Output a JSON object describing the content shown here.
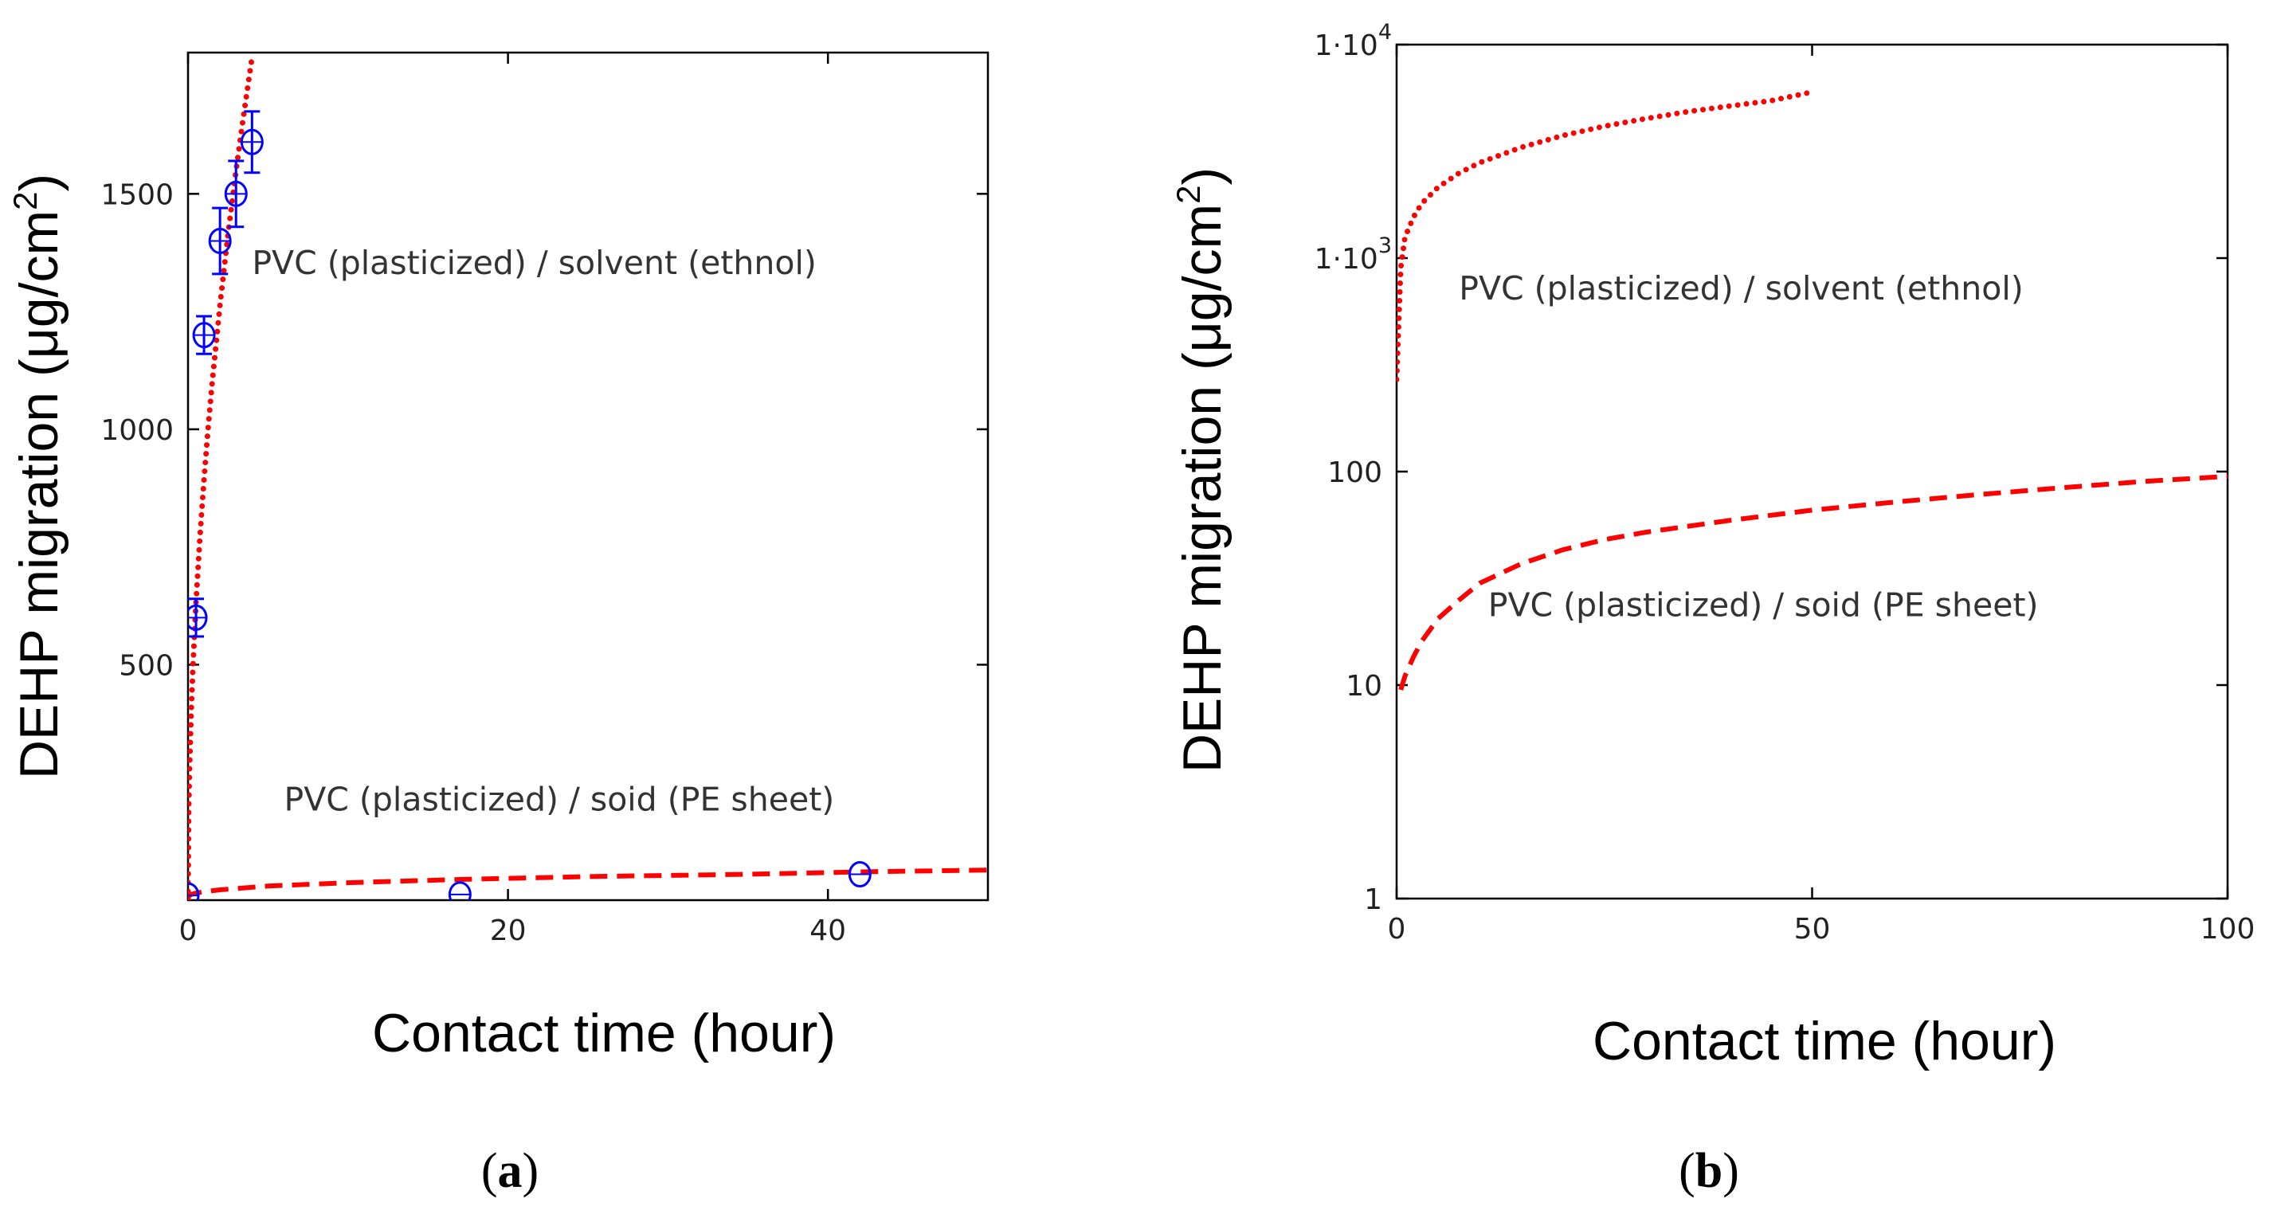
{
  "chart_data": [
    {
      "type": "line",
      "panel_label": "a",
      "panel_label_display": {
        "open": "(",
        "letter": "a",
        "close": ")"
      },
      "xlabel": "Contact time (hour)",
      "ylabel": "DEHP migration (μg/cm²)",
      "ylabel_parts": {
        "prefix": "DEHP migration (μg/cm",
        "sup": "2",
        "suffix": ")"
      },
      "xlim": [
        0,
        50
      ],
      "ylim": [
        0,
        1800
      ],
      "yscale": "linear",
      "x_ticks": [
        0,
        20,
        40
      ],
      "x_tick_labels": [
        "0",
        "20",
        "40"
      ],
      "y_ticks": [
        500,
        1000,
        1500
      ],
      "y_tick_labels": [
        "500",
        "1000",
        "1500"
      ],
      "grid": false,
      "annotations": [
        {
          "text": "PVC (plasticized) / solvent (ethnol)",
          "x": 4,
          "y": 1330
        },
        {
          "text": "PVC (plasticized) / soid (PE sheet)",
          "x": 6,
          "y": 190
        }
      ],
      "series": [
        {
          "name": "PVC (plasticized) / solvent (ethnol) - model",
          "style": "dotted",
          "color": "#ff0000",
          "x": [
            0,
            0.05,
            0.1,
            0.2,
            0.3,
            0.5,
            0.75,
            1,
            1.25,
            1.5,
            2,
            2.5,
            3,
            3.5,
            4
          ],
          "y": [
            0,
            200,
            283,
            400,
            490,
            632,
            775,
            894,
            1000,
            1095,
            1265,
            1414,
            1549,
            1673,
            1789
          ]
        },
        {
          "name": "PVC (plasticized) / soid (PE sheet) - model",
          "style": "dashed",
          "color": "#ff0000",
          "x": [
            0,
            0.02,
            0.05,
            0.1,
            0.2,
            0.5,
            1,
            2,
            5,
            10,
            17,
            25,
            35,
            42,
            50
          ],
          "y": [
            0,
            5,
            8,
            10,
            12,
            15,
            18,
            22,
            30,
            37,
            44,
            50,
            55,
            60,
            64
          ]
        },
        {
          "name": "PVC (plasticized) / solvent (ethnol) - data",
          "style": "markers",
          "color": "#0000ff",
          "marker": "circle",
          "x": [
            0.5,
            1,
            2,
            3,
            4
          ],
          "y": [
            600,
            1200,
            1400,
            1500,
            1610
          ],
          "error": [
            40,
            40,
            70,
            70,
            65
          ]
        },
        {
          "name": "PVC (plasticized) / soid (PE sheet) - data",
          "style": "markers",
          "color": "#0000ff",
          "marker": "circle",
          "x": [
            0,
            17,
            42
          ],
          "y": [
            10,
            12,
            55
          ],
          "error": [
            0,
            0,
            0
          ]
        }
      ]
    },
    {
      "type": "line",
      "panel_label": "b",
      "panel_label_display": {
        "open": "(",
        "letter": "b",
        "close": ")"
      },
      "xlabel": "Contact time (hour)",
      "ylabel": "DEHP migration (μg/cm²)",
      "ylabel_parts": {
        "prefix": "DEHP migration (μg/cm",
        "sup": "2",
        "suffix": ")"
      },
      "xlim": [
        0,
        100
      ],
      "ylim": [
        1,
        10000
      ],
      "yscale": "log",
      "x_ticks": [
        0,
        50,
        100
      ],
      "x_tick_labels": [
        "0",
        "50",
        "100"
      ],
      "y_ticks": [
        1,
        10,
        100,
        1000,
        10000
      ],
      "y_tick_labels": [
        {
          "base": "1",
          "sup": ""
        },
        {
          "base": "10",
          "sup": ""
        },
        {
          "base": "100",
          "sup": ""
        },
        {
          "base": "1·10",
          "sup": "3"
        },
        {
          "base": "1·10",
          "sup": "4"
        }
      ],
      "grid": false,
      "annotations": [
        {
          "text": "PVC (plasticized) / solvent (ethnol)",
          "x": 7.5,
          "y": 640
        },
        {
          "text": "PVC (plasticized) / soid (PE sheet)",
          "x": 11,
          "y": 21
        }
      ],
      "series": [
        {
          "name": "PVC (plasticized) / solvent (ethnol)",
          "style": "dotted",
          "color": "#ff0000",
          "x": [
            0,
            0.5,
            1,
            2,
            3,
            5,
            7.5,
            10,
            15,
            20,
            25,
            30,
            35,
            40,
            45,
            50
          ],
          "y": [
            270,
            900,
            1250,
            1550,
            1800,
            2150,
            2500,
            2800,
            3300,
            3750,
            4150,
            4500,
            4850,
            5150,
            5450,
            6000
          ]
        },
        {
          "name": "PVC (plasticized) / soid (PE sheet)",
          "style": "dashed",
          "color": "#ff0000",
          "x": [
            0.5,
            1,
            2,
            3,
            5,
            7.5,
            10,
            15,
            20,
            25,
            30,
            40,
            50,
            60,
            70,
            80,
            90,
            100
          ],
          "y": [
            9.5,
            11,
            13.5,
            16,
            20.5,
            25,
            30,
            37,
            43,
            48,
            52,
            59,
            66,
            72,
            78,
            84,
            90,
            95
          ]
        }
      ]
    }
  ]
}
